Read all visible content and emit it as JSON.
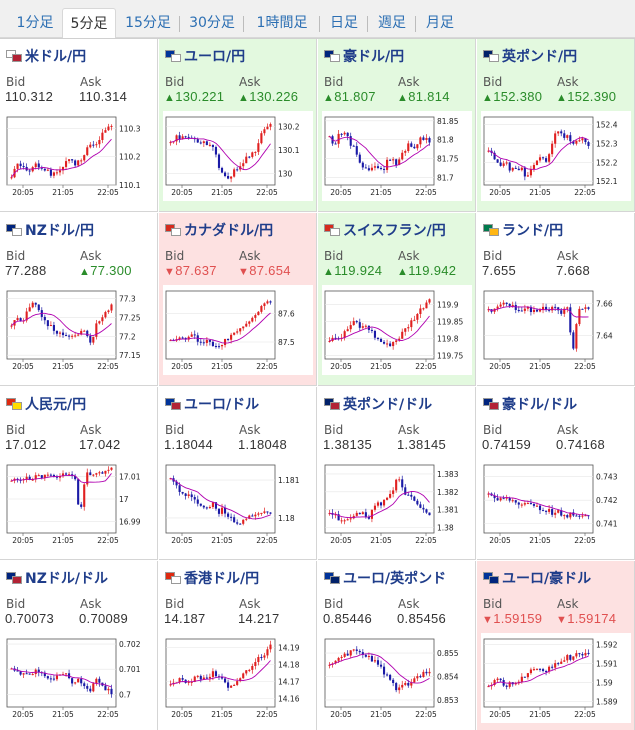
{
  "tabs": [
    {
      "label": "1分足",
      "active": false
    },
    {
      "label": "5分足",
      "active": true
    },
    {
      "label": "15分足",
      "active": false
    },
    {
      "label": "30分足",
      "active": false
    },
    {
      "label": "1時間足",
      "active": false
    },
    {
      "label": "日足",
      "active": false
    },
    {
      "label": "週足",
      "active": false
    },
    {
      "label": "月足",
      "active": false
    }
  ],
  "labels": {
    "bid": "Bid",
    "ask": "Ask"
  },
  "colors": {
    "up_candle": "#e02020",
    "down_candle": "#1a1aa6",
    "ma_line": "#b000b0",
    "green_bg": "#e3f9df",
    "red_bg": "#fde1e1",
    "up_text": "#2a8c2a",
    "down_text": "#e05050"
  },
  "pairs": [
    {
      "name": "米ドル/円",
      "flags": [
        "#ffffff",
        "#b22234"
      ],
      "highlight": "none",
      "bid": "110.312",
      "ask": "110.314",
      "bid_dir": "",
      "ask_dir": "",
      "chart_data": {
        "type": "candlestick",
        "x_ticks": [
          "20:05",
          "21:05",
          "22:05"
        ],
        "y_ticks": [
          "110.3",
          "110.2",
          "110.1"
        ],
        "y_range": [
          110.1,
          110.34
        ],
        "shape": [
          0.15,
          0.3,
          0.25,
          0.2,
          0.25,
          0.3,
          0.25,
          0.2,
          0.15,
          0.2,
          0.3,
          0.35,
          0.3,
          0.35,
          0.5,
          0.6,
          0.55,
          0.75,
          0.8,
          0.9
        ]
      }
    },
    {
      "name": "ユーロ/円",
      "flags": [
        "#003399",
        "#ffffff"
      ],
      "highlight": "green",
      "bid": "130.221",
      "ask": "130.226",
      "bid_dir": "up",
      "ask_dir": "up",
      "chart_data": {
        "type": "candlestick",
        "x_ticks": [
          "20:05",
          "21:05",
          "22:05"
        ],
        "y_ticks": [
          "130.2",
          "130.1",
          "130"
        ],
        "y_range": [
          129.95,
          130.24
        ],
        "shape": [
          0.6,
          0.7,
          0.65,
          0.75,
          0.7,
          0.6,
          0.65,
          0.55,
          0.6,
          0.3,
          0.15,
          0.1,
          0.2,
          0.25,
          0.35,
          0.45,
          0.5,
          0.7,
          0.85,
          0.9
        ]
      }
    },
    {
      "name": "豪ドル/円",
      "flags": [
        "#00247d",
        "#ffffff"
      ],
      "highlight": "green",
      "bid": "81.807",
      "ask": "81.814",
      "bid_dir": "up",
      "ask_dir": "up",
      "chart_data": {
        "type": "candlestick",
        "x_ticks": [
          "20:05",
          "21:05",
          "22:05"
        ],
        "y_ticks": [
          "81.85",
          "81.8",
          "81.75",
          "81.7"
        ],
        "y_range": [
          81.68,
          81.86
        ],
        "shape": [
          0.7,
          0.6,
          0.8,
          0.75,
          0.6,
          0.5,
          0.3,
          0.2,
          0.25,
          0.3,
          0.2,
          0.35,
          0.4,
          0.3,
          0.5,
          0.6,
          0.55,
          0.65,
          0.7,
          0.6
        ]
      }
    },
    {
      "name": "英ポンド/円",
      "flags": [
        "#012169",
        "#ffffff"
      ],
      "highlight": "green",
      "bid": "152.380",
      "ask": "152.390",
      "bid_dir": "up",
      "ask_dir": "up",
      "chart_data": {
        "type": "candlestick",
        "x_ticks": [
          "20:05",
          "21:05",
          "22:05"
        ],
        "y_ticks": [
          "152.4",
          "152.3",
          "152.2",
          "152.1"
        ],
        "y_range": [
          152.08,
          152.44
        ],
        "shape": [
          0.5,
          0.4,
          0.3,
          0.35,
          0.25,
          0.2,
          0.25,
          0.15,
          0.2,
          0.3,
          0.4,
          0.35,
          0.55,
          0.85,
          0.7,
          0.75,
          0.6,
          0.7,
          0.65,
          0.6
        ]
      }
    },
    {
      "name": "NZドル/円",
      "flags": [
        "#00247d",
        "#ffffff"
      ],
      "highlight": "none",
      "bid": "77.288",
      "ask": "77.300",
      "bid_dir": "",
      "ask_dir": "up",
      "chart_data": {
        "type": "candlestick",
        "x_ticks": [
          "20:05",
          "21:05",
          "22:05"
        ],
        "y_ticks": [
          "77.3",
          "77.25",
          "77.2",
          "77.15"
        ],
        "y_range": [
          77.14,
          77.32
        ],
        "shape": [
          0.5,
          0.6,
          0.55,
          0.7,
          0.8,
          0.75,
          0.6,
          0.5,
          0.45,
          0.35,
          0.4,
          0.3,
          0.35,
          0.4,
          0.45,
          0.2,
          0.5,
          0.6,
          0.7,
          0.8
        ]
      }
    },
    {
      "name": "カナダドル/円",
      "flags": [
        "#d52b1e",
        "#ffffff"
      ],
      "highlight": "red",
      "bid": "87.637",
      "ask": "87.654",
      "bid_dir": "down",
      "ask_dir": "down",
      "chart_data": {
        "type": "candlestick",
        "x_ticks": [
          "20:05",
          "21:05",
          "22:05"
        ],
        "y_ticks": [
          "87.6",
          "87.5"
        ],
        "y_range": [
          87.44,
          87.68
        ],
        "shape": [
          0.3,
          0.25,
          0.35,
          0.3,
          0.35,
          0.3,
          0.25,
          0.3,
          0.2,
          0.15,
          0.25,
          0.3,
          0.35,
          0.4,
          0.5,
          0.55,
          0.6,
          0.75,
          0.85,
          0.8
        ]
      }
    },
    {
      "name": "スイスフラン/円",
      "flags": [
        "#d52b1e",
        "#ffffff"
      ],
      "highlight": "green",
      "bid": "119.924",
      "ask": "119.942",
      "bid_dir": "up",
      "ask_dir": "up",
      "chart_data": {
        "type": "candlestick",
        "x_ticks": [
          "20:05",
          "21:05",
          "22:05"
        ],
        "y_ticks": [
          "119.9",
          "119.85",
          "119.8",
          "119.75"
        ],
        "y_range": [
          119.74,
          119.94
        ],
        "shape": [
          0.3,
          0.35,
          0.3,
          0.4,
          0.5,
          0.55,
          0.45,
          0.5,
          0.4,
          0.3,
          0.25,
          0.2,
          0.25,
          0.3,
          0.4,
          0.5,
          0.6,
          0.7,
          0.8,
          0.9
        ]
      }
    },
    {
      "name": "ランド/円",
      "flags": [
        "#007a4d",
        "#ffb612"
      ],
      "highlight": "none",
      "bid": "7.655",
      "ask": "7.668",
      "bid_dir": "",
      "ask_dir": "",
      "chart_data": {
        "type": "candlestick",
        "x_ticks": [
          "20:05",
          "21:05",
          "22:05"
        ],
        "y_ticks": [
          "7.66",
          "7.64"
        ],
        "y_range": [
          7.625,
          7.668
        ],
        "shape": [
          0.7,
          0.75,
          0.8,
          0.85,
          0.8,
          0.75,
          0.72,
          0.74,
          0.73,
          0.7,
          0.72,
          0.74,
          0.73,
          0.72,
          0.7,
          0.74,
          0.1,
          0.7,
          0.72,
          0.73
        ]
      }
    },
    {
      "name": "人民元/円",
      "flags": [
        "#de2910",
        "#ffde00"
      ],
      "highlight": "none",
      "bid": "17.012",
      "ask": "17.042",
      "bid_dir": "",
      "ask_dir": "",
      "chart_data": {
        "type": "candlestick",
        "x_ticks": [
          "20:05",
          "21:05",
          "22:05"
        ],
        "y_ticks": [
          "17.01",
          "17",
          "16.99"
        ],
        "y_range": [
          16.985,
          17.015
        ],
        "shape": [
          0.75,
          0.78,
          0.8,
          0.8,
          0.82,
          0.83,
          0.82,
          0.85,
          0.84,
          0.85,
          0.86,
          0.84,
          0.85,
          0.2,
          0.85,
          0.86,
          0.88,
          0.9,
          0.92,
          0.93
        ]
      }
    },
    {
      "name": "ユーロ/ドル",
      "flags": [
        "#003399",
        "#b22234"
      ],
      "highlight": "none",
      "bid": "1.18044",
      "ask": "1.18048",
      "bid_dir": "",
      "ask_dir": "",
      "chart_data": {
        "type": "candlestick",
        "x_ticks": [
          "20:05",
          "21:05",
          "22:05"
        ],
        "y_ticks": [
          "1.181",
          "1.18"
        ],
        "y_range": [
          1.1796,
          1.1814
        ],
        "shape": [
          0.8,
          0.7,
          0.6,
          0.55,
          0.5,
          0.45,
          0.4,
          0.35,
          0.45,
          0.3,
          0.35,
          0.25,
          0.2,
          0.15,
          0.2,
          0.3,
          0.25,
          0.3,
          0.35,
          0.3
        ]
      }
    },
    {
      "name": "英ポンド/ドル",
      "flags": [
        "#012169",
        "#b22234"
      ],
      "highlight": "none",
      "bid": "1.38135",
      "ask": "1.38145",
      "bid_dir": "",
      "ask_dir": "",
      "chart_data": {
        "type": "candlestick",
        "x_ticks": [
          "20:05",
          "21:05",
          "22:05"
        ],
        "y_ticks": [
          "1.383",
          "1.382",
          "1.381",
          "1.38"
        ],
        "y_range": [
          1.3797,
          1.3835
        ],
        "shape": [
          0.3,
          0.25,
          0.2,
          0.15,
          0.2,
          0.25,
          0.3,
          0.2,
          0.3,
          0.4,
          0.45,
          0.5,
          0.6,
          0.85,
          0.6,
          0.55,
          0.45,
          0.4,
          0.3,
          0.25
        ]
      }
    },
    {
      "name": "豪ドル/ドル",
      "flags": [
        "#00247d",
        "#b22234"
      ],
      "highlight": "none",
      "bid": "0.74159",
      "ask": "0.74168",
      "bid_dir": "",
      "ask_dir": "",
      "chart_data": {
        "type": "candlestick",
        "x_ticks": [
          "20:05",
          "21:05",
          "22:05"
        ],
        "y_ticks": [
          "0.743",
          "0.742",
          "0.741"
        ],
        "y_range": [
          0.7406,
          0.7435
        ],
        "shape": [
          0.6,
          0.55,
          0.5,
          0.52,
          0.48,
          0.45,
          0.42,
          0.4,
          0.45,
          0.38,
          0.35,
          0.33,
          0.3,
          0.32,
          0.28,
          0.25,
          0.3,
          0.22,
          0.25,
          0.3
        ]
      }
    },
    {
      "name": "NZドル/ドル",
      "flags": [
        "#00247d",
        "#b22234"
      ],
      "highlight": "none",
      "bid": "0.70073",
      "ask": "0.70089",
      "bid_dir": "",
      "ask_dir": "",
      "chart_data": {
        "type": "candlestick",
        "x_ticks": [
          "20:05",
          "21:05",
          "22:05"
        ],
        "y_ticks": [
          "0.702",
          "0.701",
          "0.7"
        ],
        "y_range": [
          0.6995,
          0.7022
        ],
        "shape": [
          0.6,
          0.55,
          0.5,
          0.45,
          0.5,
          0.55,
          0.5,
          0.45,
          0.4,
          0.45,
          0.5,
          0.4,
          0.35,
          0.4,
          0.3,
          0.2,
          0.45,
          0.3,
          0.25,
          0.2
        ]
      }
    },
    {
      "name": "香港ドル/円",
      "flags": [
        "#de2910",
        "#ffffff"
      ],
      "highlight": "none",
      "bid": "14.187",
      "ask": "14.217",
      "bid_dir": "",
      "ask_dir": "",
      "chart_data": {
        "type": "candlestick",
        "x_ticks": [
          "20:05",
          "21:05",
          "22:05"
        ],
        "y_ticks": [
          "14.19",
          "14.18",
          "14.17",
          "14.16"
        ],
        "y_range": [
          14.155,
          14.195
        ],
        "shape": [
          0.3,
          0.35,
          0.4,
          0.35,
          0.4,
          0.45,
          0.4,
          0.45,
          0.5,
          0.45,
          0.4,
          0.3,
          0.35,
          0.4,
          0.5,
          0.55,
          0.65,
          0.75,
          0.8,
          0.9
        ]
      }
    },
    {
      "name": "ユーロ/英ポンド",
      "flags": [
        "#003399",
        "#012169"
      ],
      "highlight": "none",
      "bid": "0.85446",
      "ask": "0.85456",
      "bid_dir": "",
      "ask_dir": "",
      "chart_data": {
        "type": "candlestick",
        "x_ticks": [
          "20:05",
          "21:05",
          "22:05"
        ],
        "y_ticks": [
          "0.855",
          "0.854",
          "0.853"
        ],
        "y_range": [
          0.8527,
          0.8556
        ],
        "shape": [
          0.6,
          0.65,
          0.7,
          0.75,
          0.8,
          0.85,
          0.8,
          0.75,
          0.7,
          0.65,
          0.55,
          0.45,
          0.35,
          0.25,
          0.3,
          0.35,
          0.4,
          0.45,
          0.5,
          0.55
        ]
      }
    },
    {
      "name": "ユーロ/豪ドル",
      "flags": [
        "#003399",
        "#00247d"
      ],
      "highlight": "red",
      "bid": "1.59159",
      "ask": "1.59174",
      "bid_dir": "down",
      "ask_dir": "down",
      "chart_data": {
        "type": "candlestick",
        "x_ticks": [
          "20:05",
          "21:05",
          "22:05"
        ],
        "y_ticks": [
          "1.592",
          "1.591",
          "1.59",
          "1.589"
        ],
        "y_range": [
          1.5887,
          1.5923
        ],
        "shape": [
          0.3,
          0.35,
          0.4,
          0.3,
          0.35,
          0.3,
          0.4,
          0.45,
          0.55,
          0.6,
          0.5,
          0.55,
          0.6,
          0.65,
          0.7,
          0.75,
          0.7,
          0.8,
          0.75,
          0.8
        ]
      }
    }
  ]
}
